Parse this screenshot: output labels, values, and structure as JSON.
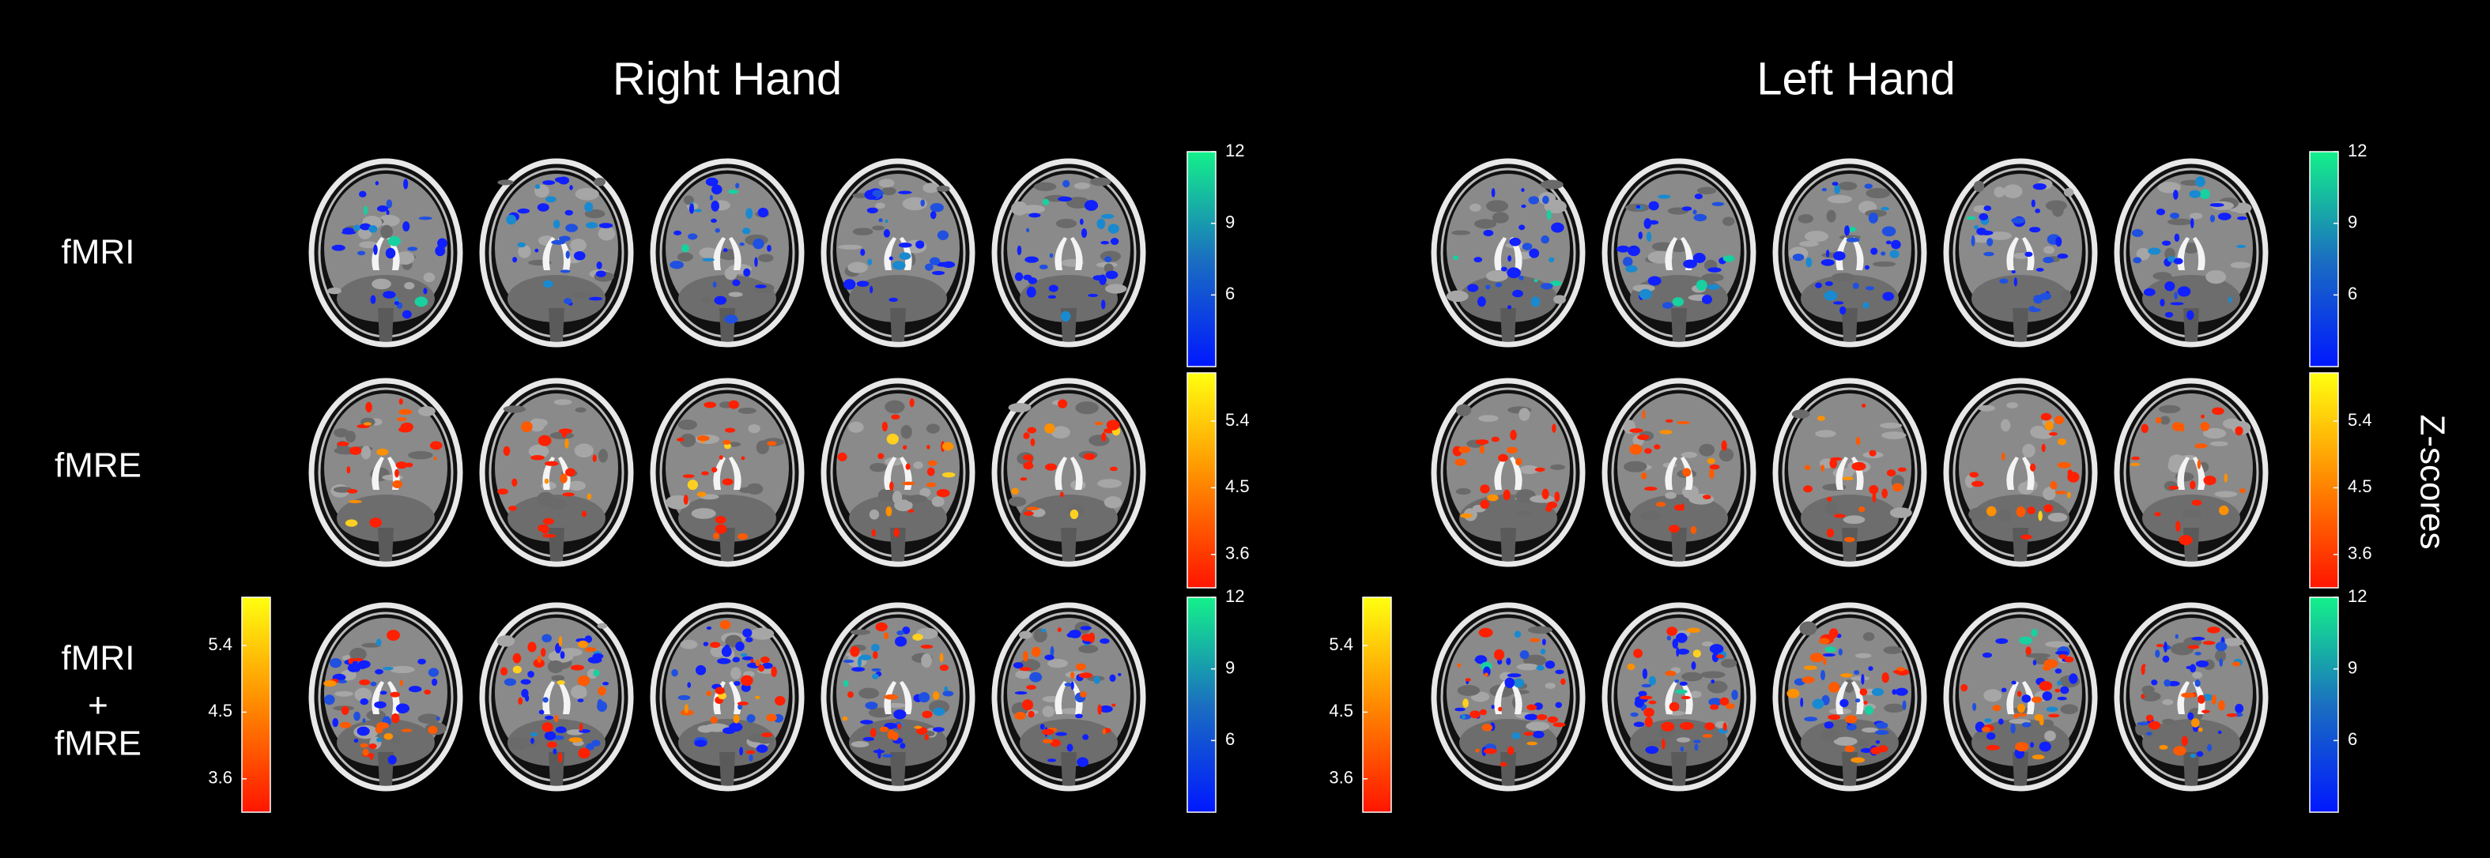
{
  "titles": [
    "Right Hand",
    "Left Hand"
  ],
  "row_labels": [
    [
      "fMRI"
    ],
    [
      "fMRE"
    ],
    [
      "fMRI",
      "+",
      "fMRE"
    ]
  ],
  "colorbars": {
    "fmri": {
      "lim": [
        3,
        12
      ],
      "ticks": [
        12,
        9,
        6
      ],
      "colors": [
        "#0018ff",
        "#1a6fc0",
        "#14f08a"
      ]
    },
    "fmre": {
      "lim": [
        3.15,
        6.05
      ],
      "ticks": [
        5.4,
        4.5,
        3.6
      ],
      "colors": [
        "#ff1500",
        "#ff8a00",
        "#ffff10"
      ]
    }
  },
  "colorbar_label": "Z-scores"
}
